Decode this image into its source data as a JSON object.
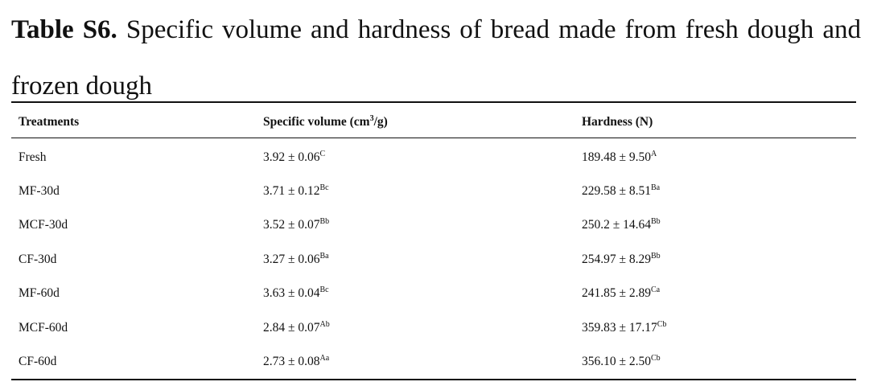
{
  "caption": {
    "label": "Table S6.",
    "text": "Specific volume and hardness of bread made from fresh dough and frozen dough"
  },
  "table": {
    "headers": {
      "treatments": "Treatments",
      "volume_prefix": "Specific volume (cm",
      "volume_sup": "3",
      "volume_suffix": "/g)",
      "hardness": "Hardness (N)"
    },
    "rows": [
      {
        "treatment": "Fresh",
        "volume": "3.92 ± 0.06",
        "volume_sup": "C",
        "hardness": "189.48 ± 9.50",
        "hardness_sup": "A"
      },
      {
        "treatment": "MF-30d",
        "volume": "3.71 ± 0.12",
        "volume_sup": "Bc",
        "hardness": "229.58 ± 8.51",
        "hardness_sup": "Ba"
      },
      {
        "treatment": "MCF-30d",
        "volume": "3.52 ± 0.07",
        "volume_sup": "Bb",
        "hardness": "250.2 ± 14.64",
        "hardness_sup": "Bb"
      },
      {
        "treatment": "CF-30d",
        "volume": "3.27 ± 0.06",
        "volume_sup": "Ba",
        "hardness": "254.97 ± 8.29",
        "hardness_sup": "Bb"
      },
      {
        "treatment": "MF-60d",
        "volume": "3.63 ± 0.04",
        "volume_sup": "Bc",
        "hardness": "241.85 ± 2.89",
        "hardness_sup": "Ca"
      },
      {
        "treatment": "MCF-60d",
        "volume": "2.84 ± 0.07",
        "volume_sup": "Ab",
        "hardness": "359.83 ± 17.17",
        "hardness_sup": "Cb"
      },
      {
        "treatment": "CF-60d",
        "volume": "2.73 ± 0.08",
        "volume_sup": "Aa",
        "hardness": "356.10 ± 2.50",
        "hardness_sup": "Cb"
      }
    ]
  }
}
